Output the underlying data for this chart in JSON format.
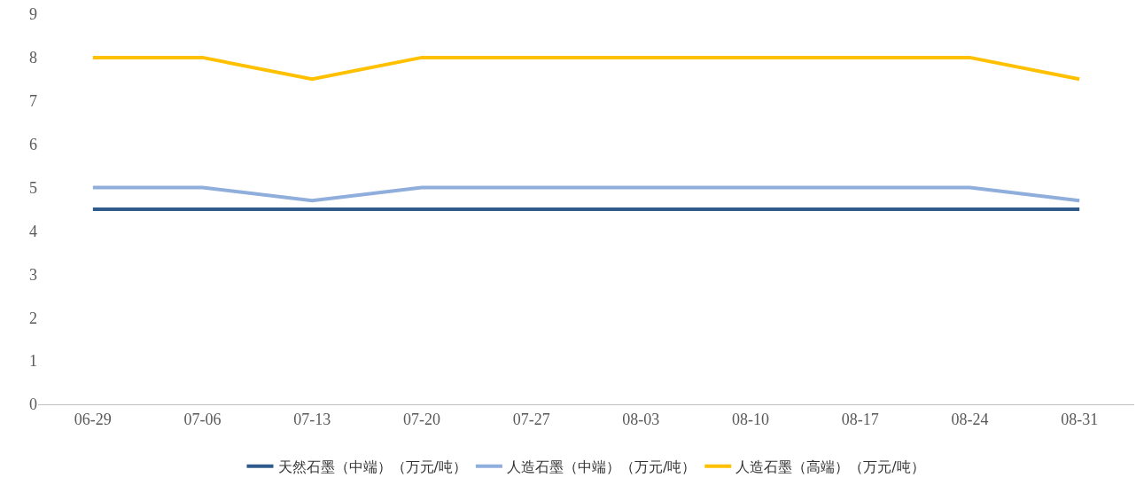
{
  "chart_data": {
    "type": "line",
    "categories": [
      "06-29",
      "07-06",
      "07-13",
      "07-20",
      "07-27",
      "08-03",
      "08-10",
      "08-17",
      "08-24",
      "08-31"
    ],
    "series": [
      {
        "name": "天然石墨（中端）（万元/吨）",
        "color": "#2f5a8c",
        "values": [
          4.5,
          4.5,
          4.5,
          4.5,
          4.5,
          4.5,
          4.5,
          4.5,
          4.5,
          4.5
        ]
      },
      {
        "name": "人造石墨（中端）（万元/吨）",
        "color": "#8faedb",
        "values": [
          5,
          5,
          4.7,
          5,
          5,
          5,
          5,
          5,
          5,
          4.7
        ]
      },
      {
        "name": "人造石墨（高端）（万元/吨）",
        "color": "#ffc000",
        "values": [
          8,
          8,
          7.5,
          8,
          8,
          8,
          8,
          8,
          8,
          7.5
        ]
      }
    ],
    "ylim": [
      0,
      9
    ],
    "yticks": [
      0,
      1,
      2,
      3,
      4,
      5,
      6,
      7,
      8,
      9
    ],
    "grid": false,
    "legend": "bottom",
    "marker": "none",
    "line_style": "solid"
  }
}
